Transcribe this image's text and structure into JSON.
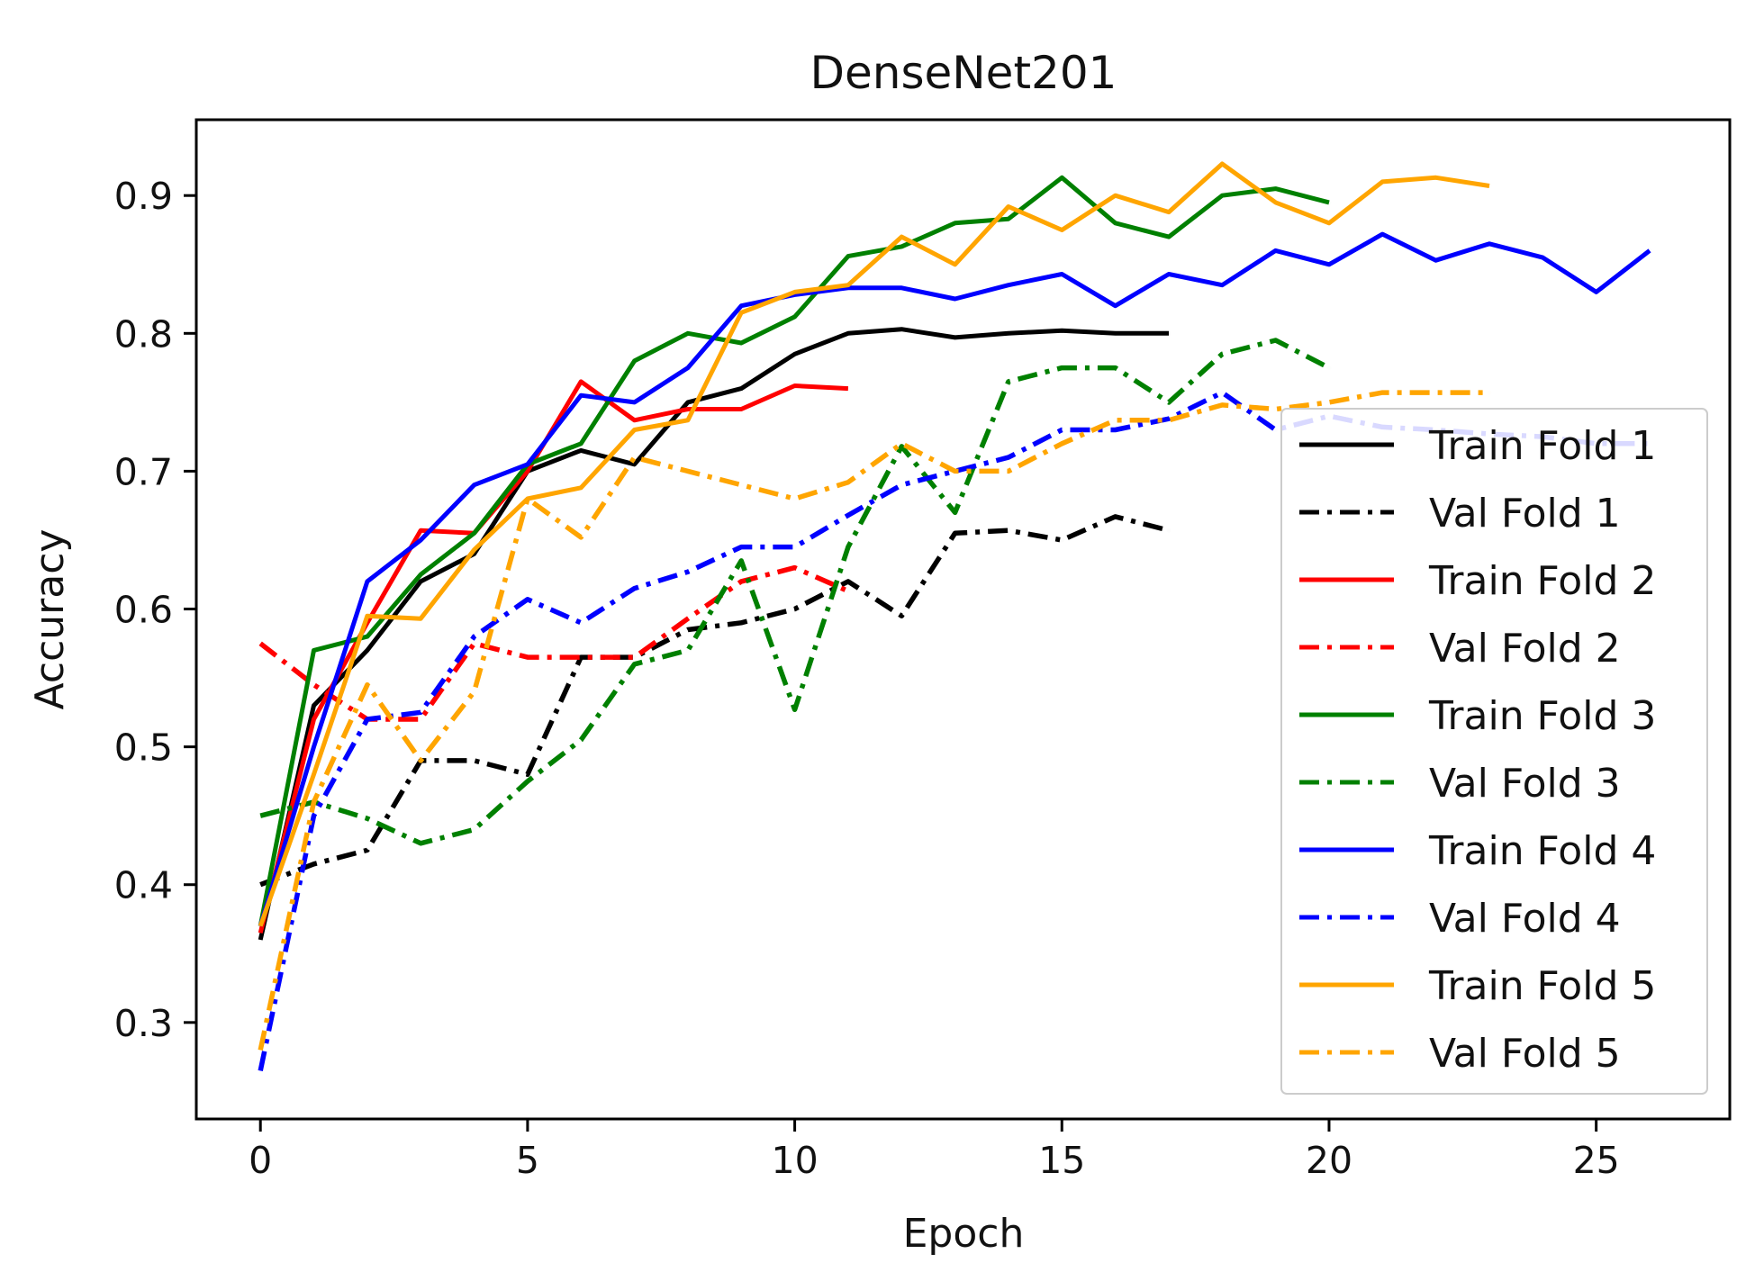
{
  "chart_data": {
    "type": "line",
    "title": "DenseNet201",
    "xlabel": "Epoch",
    "ylabel": "Accuracy",
    "xlim": [
      -1.2,
      27.5
    ],
    "ylim": [
      0.23,
      0.955
    ],
    "xticks": [
      0,
      5,
      10,
      15,
      20,
      25
    ],
    "xtick_labels": [
      "0",
      "5",
      "10",
      "15",
      "20",
      "25"
    ],
    "yticks": [
      0.3,
      0.4,
      0.5,
      0.6,
      0.7,
      0.8,
      0.9
    ],
    "ytick_labels": [
      "0.3",
      "0.4",
      "0.5",
      "0.6",
      "0.7",
      "0.8",
      "0.9"
    ],
    "grid": false,
    "legend_position": "center-right",
    "series": [
      {
        "name": "Train Fold 1",
        "color": "#000000",
        "style": "solid",
        "values": [
          0.36,
          0.53,
          0.57,
          0.62,
          0.64,
          0.7,
          0.715,
          0.705,
          0.75,
          0.76,
          0.785,
          0.8,
          0.803,
          0.797,
          0.8,
          0.802,
          0.8,
          0.8
        ]
      },
      {
        "name": "Val Fold 1",
        "color": "#000000",
        "style": "dashdot",
        "values": [
          0.4,
          0.415,
          0.425,
          0.49,
          0.49,
          0.48,
          0.565,
          0.565,
          0.585,
          0.59,
          0.6,
          0.62,
          0.595,
          0.655,
          0.657,
          0.65,
          0.667,
          0.657
        ]
      },
      {
        "name": "Train Fold 2",
        "color": "#ff0000",
        "style": "solid",
        "values": [
          0.365,
          0.52,
          0.59,
          0.657,
          0.655,
          0.7,
          0.765,
          0.737,
          0.745,
          0.745,
          0.762,
          0.76
        ]
      },
      {
        "name": "Val Fold 2",
        "color": "#ff0000",
        "style": "dashdot",
        "values": [
          0.575,
          0.545,
          0.52,
          0.52,
          0.575,
          0.565,
          0.565,
          0.565,
          0.593,
          0.62,
          0.63,
          0.613
        ]
      },
      {
        "name": "Train Fold 3",
        "color": "#008000",
        "style": "solid",
        "values": [
          0.37,
          0.57,
          0.58,
          0.625,
          0.655,
          0.705,
          0.72,
          0.78,
          0.8,
          0.793,
          0.812,
          0.856,
          0.863,
          0.88,
          0.883,
          0.913,
          0.88,
          0.87,
          0.9,
          0.905,
          0.895
        ]
      },
      {
        "name": "Val Fold 3",
        "color": "#008000",
        "style": "dashdot",
        "values": [
          0.45,
          0.46,
          0.448,
          0.43,
          0.44,
          0.475,
          0.505,
          0.56,
          0.57,
          0.635,
          0.527,
          0.645,
          0.718,
          0.67,
          0.765,
          0.775,
          0.775,
          0.75,
          0.785,
          0.795,
          0.775
        ]
      },
      {
        "name": "Train Fold 4",
        "color": "#0000ff",
        "style": "solid",
        "values": [
          0.37,
          0.5,
          0.62,
          0.65,
          0.69,
          0.705,
          0.755,
          0.75,
          0.775,
          0.82,
          0.828,
          0.833,
          0.833,
          0.825,
          0.835,
          0.843,
          0.82,
          0.843,
          0.835,
          0.86,
          0.85,
          0.872,
          0.853,
          0.865,
          0.855,
          0.83,
          0.86
        ]
      },
      {
        "name": "Val Fold 4",
        "color": "#0000ff",
        "style": "dashdot",
        "values": [
          0.265,
          0.45,
          0.52,
          0.525,
          0.58,
          0.607,
          0.59,
          0.615,
          0.627,
          0.645,
          0.645,
          0.668,
          0.69,
          0.7,
          0.71,
          0.73,
          0.73,
          0.738,
          0.757,
          0.73,
          0.74,
          0.732,
          0.73,
          0.727,
          0.725,
          0.72,
          0.72
        ]
      },
      {
        "name": "Train Fold 5",
        "color": "#ffa500",
        "style": "solid",
        "values": [
          0.37,
          0.48,
          0.595,
          0.593,
          0.643,
          0.68,
          0.688,
          0.73,
          0.737,
          0.815,
          0.83,
          0.835,
          0.87,
          0.85,
          0.892,
          0.875,
          0.9,
          0.888,
          0.923,
          0.895,
          0.88,
          0.91,
          0.913,
          0.907
        ]
      },
      {
        "name": "Val Fold 5",
        "color": "#ffa500",
        "style": "dashdot",
        "values": [
          0.28,
          0.46,
          0.545,
          0.49,
          0.54,
          0.68,
          0.652,
          0.71,
          0.7,
          0.69,
          0.68,
          0.692,
          0.72,
          0.7,
          0.7,
          0.72,
          0.737,
          0.737,
          0.748,
          0.745,
          0.75,
          0.757,
          0.757,
          0.757
        ]
      }
    ]
  }
}
